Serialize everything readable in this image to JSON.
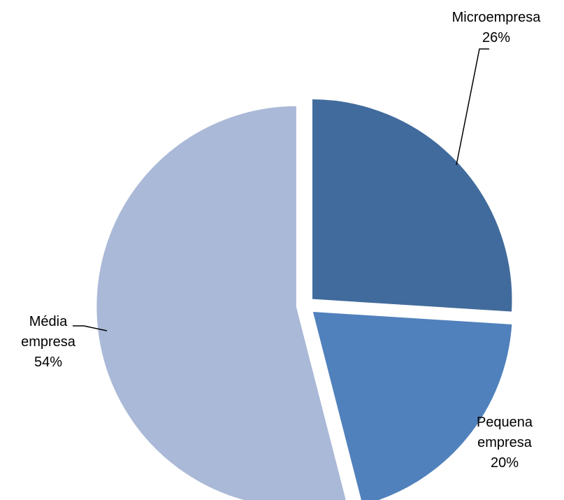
{
  "chart_data": {
    "type": "pie",
    "title": "",
    "exploded": true,
    "legend": "none",
    "slices": [
      {
        "label_lines": [
          "Microempresa",
          "26%"
        ],
        "value": 26,
        "color": "#416b9c"
      },
      {
        "label_lines": [
          "Pequena",
          "empresa",
          "20%"
        ],
        "value": 20,
        "color": "#5081bc"
      },
      {
        "label_lines": [
          "Média",
          "empresa",
          "54%"
        ],
        "value": 54,
        "color": "#aab9d7"
      }
    ]
  }
}
